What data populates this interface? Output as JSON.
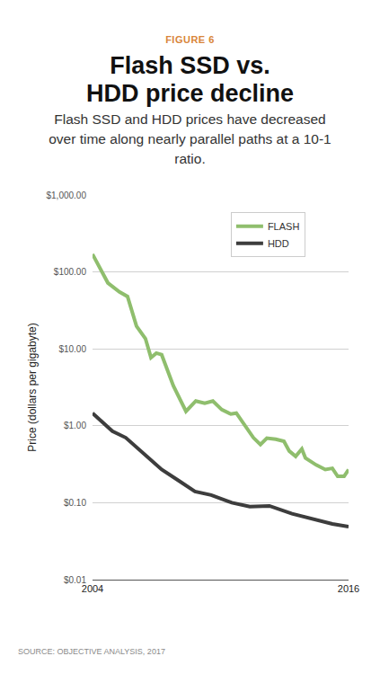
{
  "chart_data": {
    "type": "line",
    "title": "Flash SSD vs. HDD price decline",
    "subtitle": "Flash SSD and HDD prices have decreased over time along nearly parallel paths at a 10-1 ratio.",
    "annotations": [
      "FIGURE 6",
      "SOURCE: OBJECTIVE ANALYSIS, 2017"
    ],
    "ylabel": "Price (dollars per gigabyte)",
    "xlim": [
      2004,
      2016
    ],
    "xticks": [
      2004,
      2016
    ],
    "ylim": [
      0.01,
      1000
    ],
    "yticks": [
      {
        "value": 0.01,
        "label": "$0.01"
      },
      {
        "value": 0.1,
        "label": "$0.10"
      },
      {
        "value": 1,
        "label": "$1.00"
      },
      {
        "value": 10,
        "label": "$10.00"
      },
      {
        "value": 100,
        "label": "$100.00"
      },
      {
        "value": 1000,
        "label": "$1,000.00"
      }
    ],
    "log": "y",
    "grid": "y",
    "legend": "top-right",
    "series": [
      {
        "name": "FLASH",
        "color": "#8fbe6d",
        "x": [
          2004.0,
          2004.72,
          2005.26,
          2005.64,
          2006.06,
          2006.48,
          2006.74,
          2006.99,
          2007.24,
          2007.79,
          2008.38,
          2008.84,
          2009.26,
          2009.64,
          2010.06,
          2010.48,
          2010.74,
          2011.03,
          2011.54,
          2011.87,
          2012.17,
          2012.59,
          2012.97,
          2013.22,
          2013.52,
          2013.81,
          2013.98,
          2014.48,
          2014.91,
          2015.24,
          2015.49,
          2015.79,
          2016.0
        ],
        "values": [
          170,
          72,
          55,
          48,
          19.8,
          13.6,
          7.7,
          8.8,
          8.4,
          3.3,
          1.54,
          2.1,
          1.96,
          2.1,
          1.62,
          1.42,
          1.46,
          1.11,
          0.7,
          0.57,
          0.69,
          0.67,
          0.63,
          0.47,
          0.4,
          0.5,
          0.38,
          0.31,
          0.27,
          0.28,
          0.22,
          0.22,
          0.27
        ]
      },
      {
        "name": "HDD",
        "color": "#3d3d3d",
        "x": [
          2004.0,
          2004.93,
          2005.56,
          2006.4,
          2007.24,
          2008.08,
          2008.8,
          2009.56,
          2010.53,
          2011.37,
          2012.29,
          2013.35,
          2014.4,
          2015.24,
          2016.0
        ],
        "values": [
          1.46,
          0.85,
          0.7,
          0.43,
          0.27,
          0.19,
          0.14,
          0.126,
          0.1,
          0.089,
          0.091,
          0.072,
          0.061,
          0.053,
          0.049
        ]
      }
    ]
  }
}
